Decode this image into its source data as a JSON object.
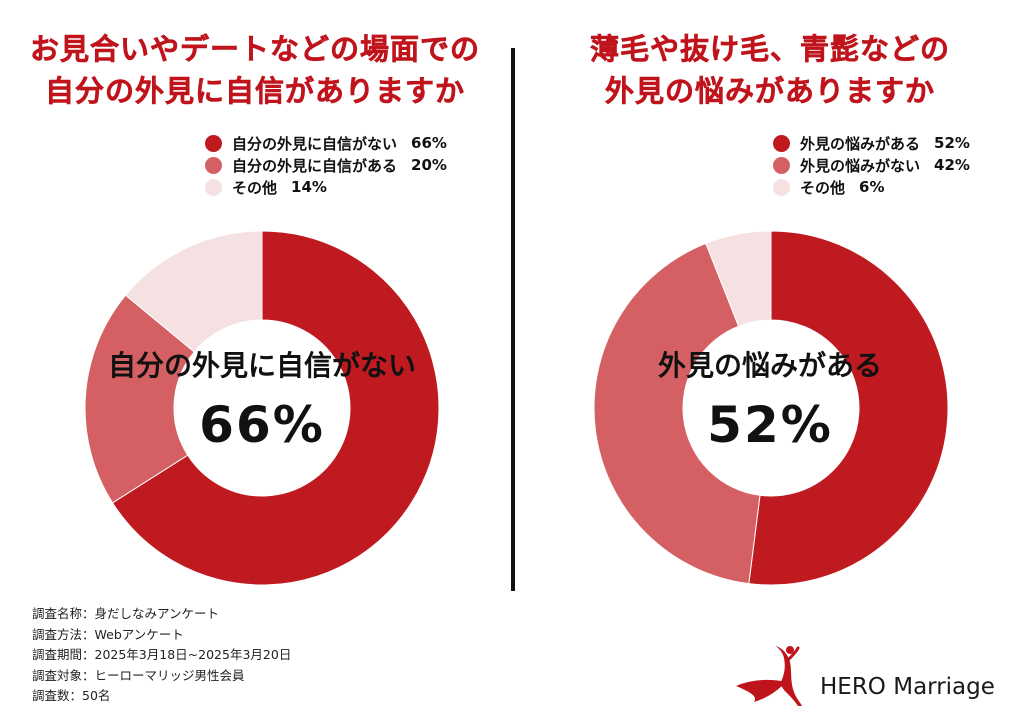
{
  "colors": {
    "title": "#c0141c",
    "dark_red": "#bf1a20",
    "mid_red": "#d56063",
    "pale_pink": "#f6e1e2",
    "text": "#111111"
  },
  "chart_data": [
    {
      "type": "pie",
      "variant": "donut",
      "title_lines": [
        "お見合いやデートなどの場面での",
        "自分の外見に自信がありますか"
      ],
      "categories": [
        "自分の外見に自信がない",
        "自分の外見に自信がある",
        "その他"
      ],
      "values": [
        66,
        20,
        14
      ],
      "value_labels": [
        "66%",
        "20%",
        "14%"
      ],
      "colors": [
        "#bf1a20",
        "#d56063",
        "#f6e1e2"
      ],
      "legend_position": "top-right",
      "center_text": "自分の外見に自信がない",
      "center_value": "66%"
    },
    {
      "type": "pie",
      "variant": "donut",
      "title_lines": [
        "薄毛や抜け毛、青髭などの",
        "外見の悩みがありますか"
      ],
      "categories": [
        "外見の悩みがある",
        "外見の悩みがない",
        "その他"
      ],
      "values": [
        52,
        42,
        6
      ],
      "value_labels": [
        "52%",
        "42%",
        "6%"
      ],
      "colors": [
        "#bf1a20",
        "#d56063",
        "#f6e1e2"
      ],
      "legend_position": "top-right",
      "center_text": "外見の悩みがある",
      "center_value": "52%"
    }
  ],
  "footnote": {
    "lines": [
      "調査名称：身だしなみアンケート",
      "調査方法：Webアンケート",
      "調査期間：2025年3月18日~2025年3月20日",
      "調査対象：ヒーローマリッジ男性会員",
      "調査数：50名"
    ]
  },
  "brand": {
    "name": "HERO Marriage",
    "logo_icon": "hero-figure-icon"
  }
}
